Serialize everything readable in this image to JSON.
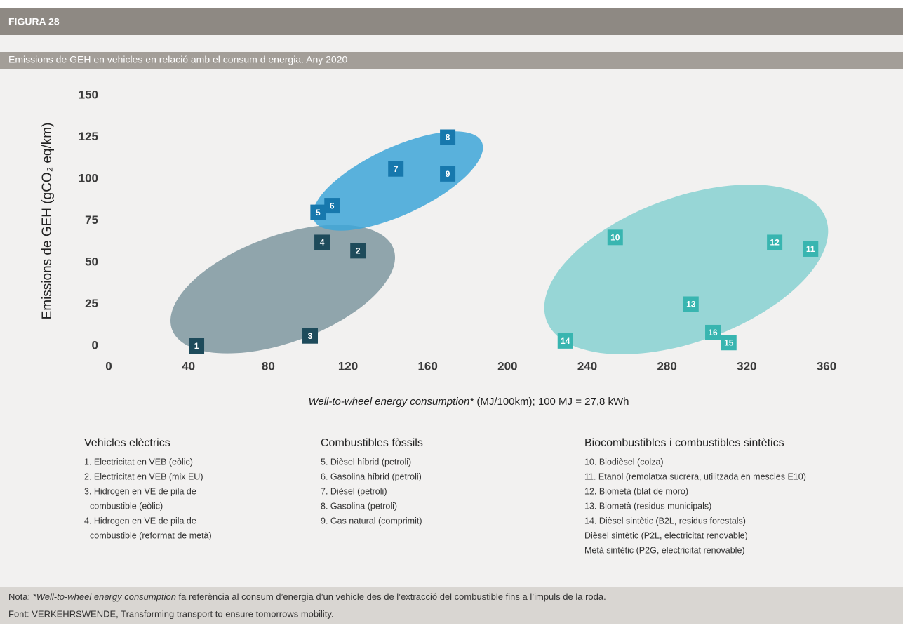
{
  "header": {
    "figure": "FIGURA 28",
    "title": "Emissions de GEH en vehicles en relació amb el consum d energia. Any 2020"
  },
  "chart_data": {
    "type": "scatter",
    "ylabel": "Emissions de GEH (gCO₂ eq/km)",
    "xlabel_italic": "Well-to-wheel energy consumption*",
    "xlabel_rest": " (MJ/100km); 100 MJ = 27,8 kWh",
    "xlim": [
      0,
      360
    ],
    "xticks": [
      0,
      40,
      80,
      120,
      160,
      200,
      240,
      280,
      320,
      360
    ],
    "ylim": [
      0,
      150
    ],
    "yticks": [
      0,
      25,
      50,
      75,
      100,
      125,
      150
    ],
    "grid": false,
    "series": [
      {
        "name": "Vehicles elèctrics",
        "color": "#1e4b5b",
        "point_labels": [
          "1",
          "2",
          "3",
          "4"
        ],
        "x": [
          44,
          125,
          101,
          107
        ],
        "values": [
          0,
          57,
          6,
          62
        ],
        "items": [
          "1. Electricitat en VEB (eòlic)",
          "2. Electricitat en VEB (mix EU)",
          "3. Hidrogen en VE de pila de",
          "combustible (eòlic)",
          "4. Hidrogen en VE de pila de",
          "combustible (reformat de metà)"
        ]
      },
      {
        "name": "Combustibles fòssils",
        "color": "#1778ad",
        "point_labels": [
          "5",
          "6",
          "7",
          "8",
          "9"
        ],
        "x": [
          105,
          112,
          144,
          170,
          170
        ],
        "values": [
          80,
          84,
          106,
          125,
          103
        ],
        "items": [
          "5. Dièsel híbrid (petroli)",
          "6. Gasolina híbrid (petroli)",
          "7. Dièsel (petroli)",
          "8. Gasolina (petroli)",
          "9. Gas natural (comprimit)"
        ]
      },
      {
        "name": "Biocombustibles i combustibles sintètics",
        "color": "#38b5b0",
        "point_labels": [
          "10",
          "11",
          "12",
          "13",
          "14",
          "15",
          "16"
        ],
        "x": [
          254,
          352,
          334,
          292,
          229,
          311,
          303
        ],
        "values": [
          65,
          58,
          62,
          25,
          3,
          2,
          8
        ],
        "items": [
          "10. Biodièsel (colza)",
          "11. Etanol (remolatxa sucrera, utilitzada en mescles E10)",
          "12. Biometà (blat de moro)",
          "13. Biometà (residus municipals)",
          "14. Dièsel sintètic (B2L, residus forestals)",
          "Dièsel sintètic (P2L, electricitat renovable)",
          "Metà sintètic (P2G, electricitat renovable)"
        ]
      }
    ]
  },
  "footer": {
    "note_prefix": "Nota: ",
    "note_italic": "*Well-to-wheel energy consumption",
    "note_rest": " fa referència al consum d’energia d’un vehicle des de l’extracció del combustible fins a l’impuls de la roda.",
    "source": "Font: VERKEHRSWENDE, Transforming transport to ensure tomorrows mobility."
  }
}
